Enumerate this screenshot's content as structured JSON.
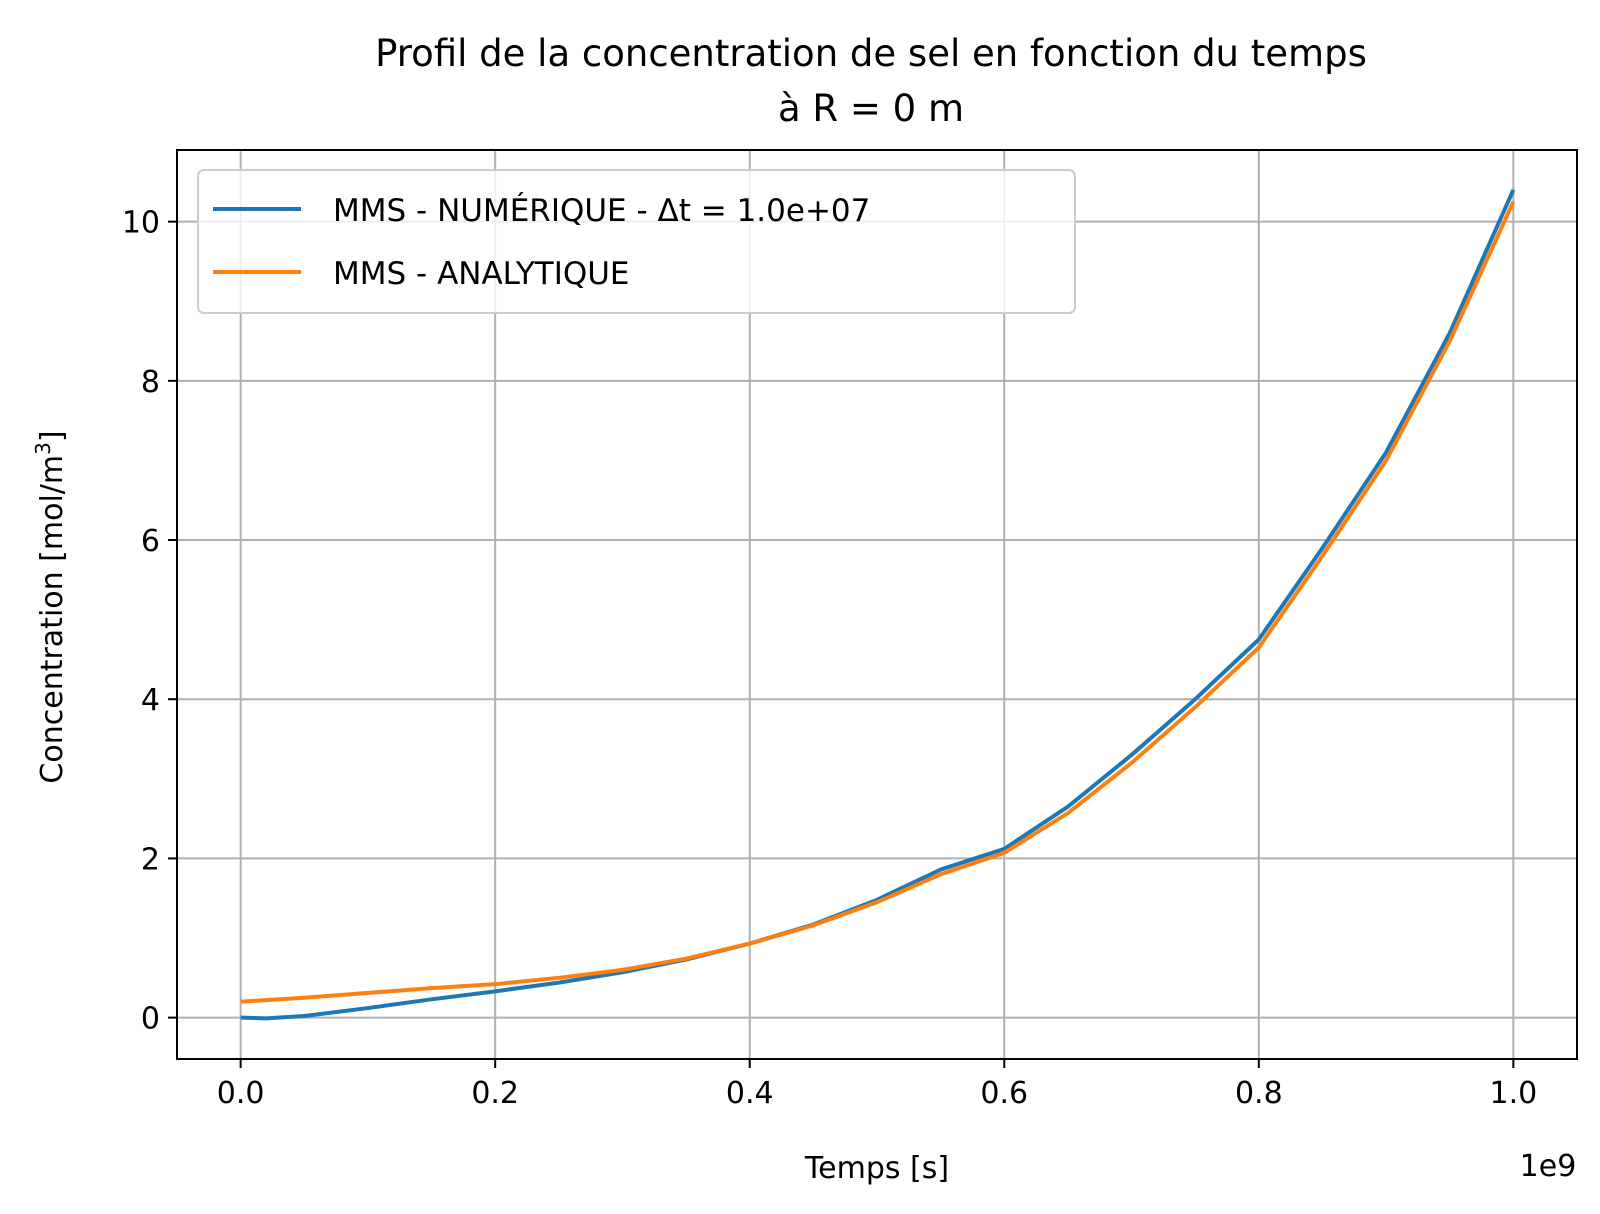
{
  "chart_data": {
    "type": "line",
    "title": "Profil de la concentration de sel en fonction du temps",
    "title_line2": "à R = 0 m",
    "xlabel": "Temps [s]",
    "ylabel": "Concentration [mol/m",
    "ylabel_sup": "3",
    "ylabel_close": "]",
    "x_offset_label": "1e9",
    "xlim": [
      -0.05,
      1.05
    ],
    "ylim": [
      -0.52,
      10.9
    ],
    "x_ticks": [
      0.0,
      0.2,
      0.4,
      0.6,
      0.8,
      1.0
    ],
    "x_tick_labels": [
      "0.0",
      "0.2",
      "0.4",
      "0.6",
      "0.8",
      "1.0"
    ],
    "y_ticks": [
      0,
      2,
      4,
      6,
      8,
      10
    ],
    "y_tick_labels": [
      "0",
      "2",
      "4",
      "6",
      "8",
      "10"
    ],
    "grid": true,
    "legend_position": "upper-left",
    "series": [
      {
        "name": "MMS - NUMÉRIQUE - Δt = 1.0e+07",
        "color": "#1f77b4",
        "x": [
          0.0,
          0.02,
          0.05,
          0.1,
          0.15,
          0.2,
          0.25,
          0.3,
          0.35,
          0.4,
          0.45,
          0.5,
          0.55,
          0.6,
          0.65,
          0.7,
          0.75,
          0.8,
          0.85,
          0.9,
          0.95,
          1.0
        ],
        "y": [
          0.0,
          -0.01,
          0.02,
          0.12,
          0.23,
          0.33,
          0.44,
          0.57,
          0.73,
          0.93,
          1.17,
          1.48,
          1.86,
          2.12,
          2.65,
          3.3,
          4.0,
          4.75,
          5.9,
          7.1,
          8.6,
          10.4
        ]
      },
      {
        "name": "MMS - ANALYTIQUE",
        "color": "#ff7f0e",
        "x": [
          0.0,
          0.05,
          0.1,
          0.15,
          0.2,
          0.25,
          0.3,
          0.35,
          0.4,
          0.45,
          0.5,
          0.55,
          0.6,
          0.65,
          0.7,
          0.75,
          0.8,
          0.85,
          0.9,
          0.95,
          1.0
        ],
        "y": [
          0.2,
          0.25,
          0.31,
          0.37,
          0.42,
          0.5,
          0.6,
          0.74,
          0.93,
          1.16,
          1.45,
          1.8,
          2.07,
          2.57,
          3.2,
          3.9,
          4.65,
          5.8,
          7.0,
          8.5,
          10.25
        ]
      }
    ]
  }
}
